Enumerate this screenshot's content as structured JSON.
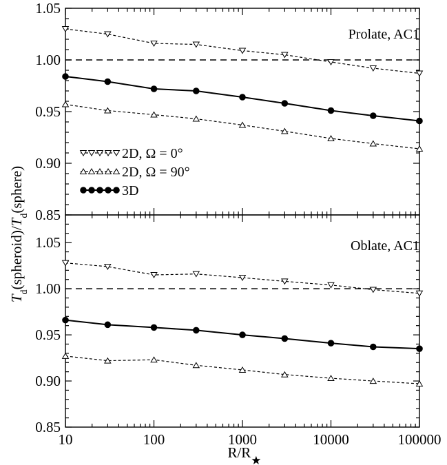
{
  "chart_data": [
    {
      "type": "line",
      "annotation": "Prolate, AC1",
      "x_scale": "log",
      "xlim": [
        10,
        100000
      ],
      "ylim": [
        0.85,
        1.05
      ],
      "yticks": [
        "0.85",
        "0.90",
        "0.95",
        "1.00",
        "1.05"
      ],
      "x": [
        10,
        30,
        100,
        300,
        1000,
        3000,
        10000,
        30000,
        100000
      ],
      "reference_line": 1.0,
      "series": [
        {
          "name": "2D, Ω = 0°",
          "marker": "triangle-down",
          "style": "dashed",
          "values": [
            1.03,
            1.025,
            1.016,
            1.015,
            1.009,
            1.005,
            0.998,
            0.992,
            0.987
          ]
        },
        {
          "name": "2D, Ω = 90°",
          "marker": "triangle-up",
          "style": "dashed",
          "values": [
            0.957,
            0.951,
            0.947,
            0.943,
            0.937,
            0.931,
            0.924,
            0.919,
            0.914
          ]
        },
        {
          "name": "3D",
          "marker": "circle",
          "style": "solid",
          "values": [
            0.984,
            0.979,
            0.972,
            0.97,
            0.964,
            0.958,
            0.951,
            0.946,
            0.941
          ]
        }
      ]
    },
    {
      "type": "line",
      "annotation": "Oblate, AC1",
      "x_scale": "log",
      "xlim": [
        10,
        100000
      ],
      "ylim": [
        0.85,
        1.08
      ],
      "yticks": [
        "0.85",
        "0.90",
        "0.95",
        "1.00",
        "1.05"
      ],
      "xticks": [
        "10",
        "100",
        "1000",
        "10000",
        "100000"
      ],
      "x": [
        10,
        30,
        100,
        300,
        1000,
        3000,
        10000,
        30000,
        100000
      ],
      "reference_line": 1.0,
      "series": [
        {
          "name": "2D, Ω = 0°",
          "marker": "triangle-down",
          "style": "dashed",
          "values": [
            1.028,
            1.024,
            1.015,
            1.016,
            1.012,
            1.008,
            1.004,
            0.999,
            0.995
          ]
        },
        {
          "name": "2D, Ω = 90°",
          "marker": "triangle-up",
          "style": "dashed",
          "values": [
            0.927,
            0.922,
            0.923,
            0.917,
            0.912,
            0.907,
            0.903,
            0.9,
            0.897
          ]
        },
        {
          "name": "3D",
          "marker": "circle",
          "style": "solid",
          "values": [
            0.966,
            0.961,
            0.958,
            0.955,
            0.95,
            0.946,
            0.941,
            0.937,
            0.935
          ]
        }
      ]
    }
  ],
  "axes": {
    "ylabel_parts": [
      "T",
      "d",
      "(spheroid)/",
      "T",
      "d",
      "(sphere)"
    ],
    "xlabel_parts": [
      "R/R",
      "★"
    ]
  },
  "legend": [
    {
      "label": "2D, Ω = 0°",
      "marker": "triangle-down"
    },
    {
      "label": "2D, Ω = 90°",
      "marker": "triangle-up"
    },
    {
      "label": "3D",
      "marker": "circle"
    }
  ]
}
